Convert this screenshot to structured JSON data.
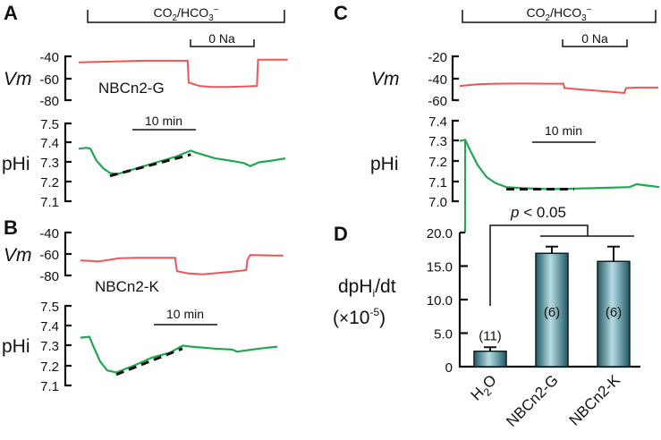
{
  "panels": {
    "A": {
      "letter": "A",
      "construct": "NBCn2-G",
      "vm_label": "Vm",
      "ph_label": "pHi",
      "scale_bar": "10 min",
      "co2_label": "CO2/HCO3−",
      "na_label": "0 Na"
    },
    "B": {
      "letter": "B",
      "construct": "NBCn2-K",
      "vm_label": "Vm",
      "ph_label": "pHi",
      "scale_bar": "10 min"
    },
    "C": {
      "letter": "C",
      "vm_label": "Vm",
      "ph_label": "pHi",
      "scale_bar": "10 min",
      "co2_label": "CO2/HCO3−",
      "na_label": "0 Na"
    },
    "D": {
      "letter": "D",
      "ylabel_line1": "dpHi/dt",
      "ylabel_line2": "(×10-5)",
      "significance": "p < 0.05"
    }
  },
  "chart_data": [
    {
      "panel": "A-Vm",
      "type": "line",
      "ylabel": "Vm",
      "yticks": [
        -40,
        -60,
        -80
      ],
      "ylim": [
        -80,
        -40
      ],
      "series": [
        {
          "name": "NBCn2-G Vm",
          "color": "#ee5555",
          "x": [
            0,
            20,
            40,
            60,
            80,
            99,
            100,
            110,
            120,
            135,
            150,
            162,
            163,
            175,
            190
          ],
          "y": [
            -45.5,
            -45,
            -44.5,
            -44,
            -44,
            -44,
            -64,
            -67,
            -68,
            -68,
            -67.5,
            -67,
            -43,
            -43,
            -43
          ]
        }
      ]
    },
    {
      "panel": "A-pHi",
      "type": "line",
      "ylabel": "pHi",
      "yticks": [
        7.5,
        7.4,
        7.3,
        7.2,
        7.1
      ],
      "ylim": [
        7.1,
        7.5
      ],
      "series": [
        {
          "name": "NBCn2-G pHi",
          "color": "#1fa84f",
          "x": [
            0,
            8,
            12,
            18,
            25,
            32,
            40,
            60,
            80,
            100,
            115,
            120,
            140,
            160,
            170,
            176,
            185,
            200,
            212
          ],
          "y": [
            7.37,
            7.375,
            7.37,
            7.31,
            7.27,
            7.245,
            7.24,
            7.27,
            7.3,
            7.33,
            7.36,
            7.35,
            7.32,
            7.305,
            7.295,
            7.28,
            7.3,
            7.31,
            7.32
          ]
        },
        {
          "name": "fit",
          "color": "#111111",
          "x": [
            32,
            115
          ],
          "y": [
            7.23,
            7.34
          ]
        }
      ]
    },
    {
      "panel": "B-Vm",
      "type": "line",
      "ylabel": "Vm",
      "yticks": [
        -40,
        -60,
        -80
      ],
      "ylim": [
        -80,
        -40
      ],
      "series": [
        {
          "name": "NBCn2-K Vm",
          "color": "#ee5555",
          "x": [
            0,
            10,
            18,
            40,
            60,
            80,
            97,
            99,
            110,
            125,
            150,
            170,
            171,
            174,
            200,
            208
          ],
          "y": [
            -66,
            -66.5,
            -67,
            -64,
            -63.5,
            -63.5,
            -63.5,
            -76,
            -78,
            -79,
            -77,
            -75,
            -66,
            -61,
            -61.5,
            -61.5
          ]
        }
      ]
    },
    {
      "panel": "B-pHi",
      "type": "line",
      "ylabel": "pHi",
      "yticks": [
        7.5,
        7.4,
        7.3,
        7.2,
        7.1
      ],
      "ylim": [
        7.1,
        7.5
      ],
      "series": [
        {
          "name": "NBCn2-K pHi",
          "color": "#1fa84f",
          "x": [
            0,
            10,
            14,
            22,
            30,
            40,
            60,
            80,
            100,
            114,
            124,
            150,
            170,
            175,
            200,
            220
          ],
          "y": [
            7.34,
            7.345,
            7.3,
            7.22,
            7.175,
            7.165,
            7.2,
            7.24,
            7.265,
            7.3,
            7.295,
            7.285,
            7.28,
            7.27,
            7.285,
            7.295
          ]
        },
        {
          "name": "fit",
          "color": "#111111",
          "x": [
            40,
            114
          ],
          "y": [
            7.155,
            7.285
          ]
        }
      ]
    },
    {
      "panel": "C-Vm",
      "type": "line",
      "ylabel": "Vm",
      "yticks": [
        -20,
        -40,
        -60
      ],
      "ylim": [
        -60,
        -20
      ],
      "series": [
        {
          "name": "H2O Vm",
          "color": "#ee5555",
          "x": [
            0,
            20,
            40,
            70,
            100,
            116,
            117,
            140,
            170,
            184,
            186,
            200,
            222
          ],
          "y": [
            -47,
            -45.5,
            -45,
            -44.8,
            -45,
            -45,
            -49,
            -50.5,
            -52.5,
            -53.5,
            -49,
            -48.5,
            -48.5
          ]
        }
      ]
    },
    {
      "panel": "C-pHi",
      "type": "line",
      "ylabel": "pHi",
      "yticks": [
        7.4,
        7.3,
        7.2,
        7.1,
        7.0
      ],
      "ylim": [
        7.0,
        7.4
      ],
      "series": [
        {
          "name": "H2O pHi",
          "color": "#1fa84f",
          "x": [
            0,
            6,
            12,
            20,
            30,
            40,
            52,
            70,
            100,
            150,
            190,
            198,
            205,
            215,
            223
          ],
          "y": [
            7.3,
            7.305,
            7.25,
            7.18,
            7.12,
            7.09,
            7.07,
            7.065,
            7.06,
            7.065,
            7.07,
            7.085,
            7.08,
            7.075,
            7.07
          ]
        },
        {
          "name": "fit",
          "color": "#111111",
          "x": [
            52,
            128
          ],
          "y": [
            7.06,
            7.06
          ]
        }
      ]
    },
    {
      "panel": "D",
      "type": "bar",
      "title": "",
      "xlabel": "",
      "ylabel": "dpHi/dt (×10-5)",
      "categories": [
        "H2O",
        "NBCn2-G",
        "NBCn2-K"
      ],
      "values": [
        2.3,
        16.9,
        15.7
      ],
      "errors": [
        0.6,
        1.0,
        2.2
      ],
      "n_labels": [
        "(11)",
        "(6)",
        "(6)"
      ],
      "yticks": [
        "0",
        "5.0",
        "10.0",
        "15.0",
        "20.0"
      ],
      "ylim": [
        0,
        20
      ],
      "annotation": "p < 0.05"
    }
  ]
}
